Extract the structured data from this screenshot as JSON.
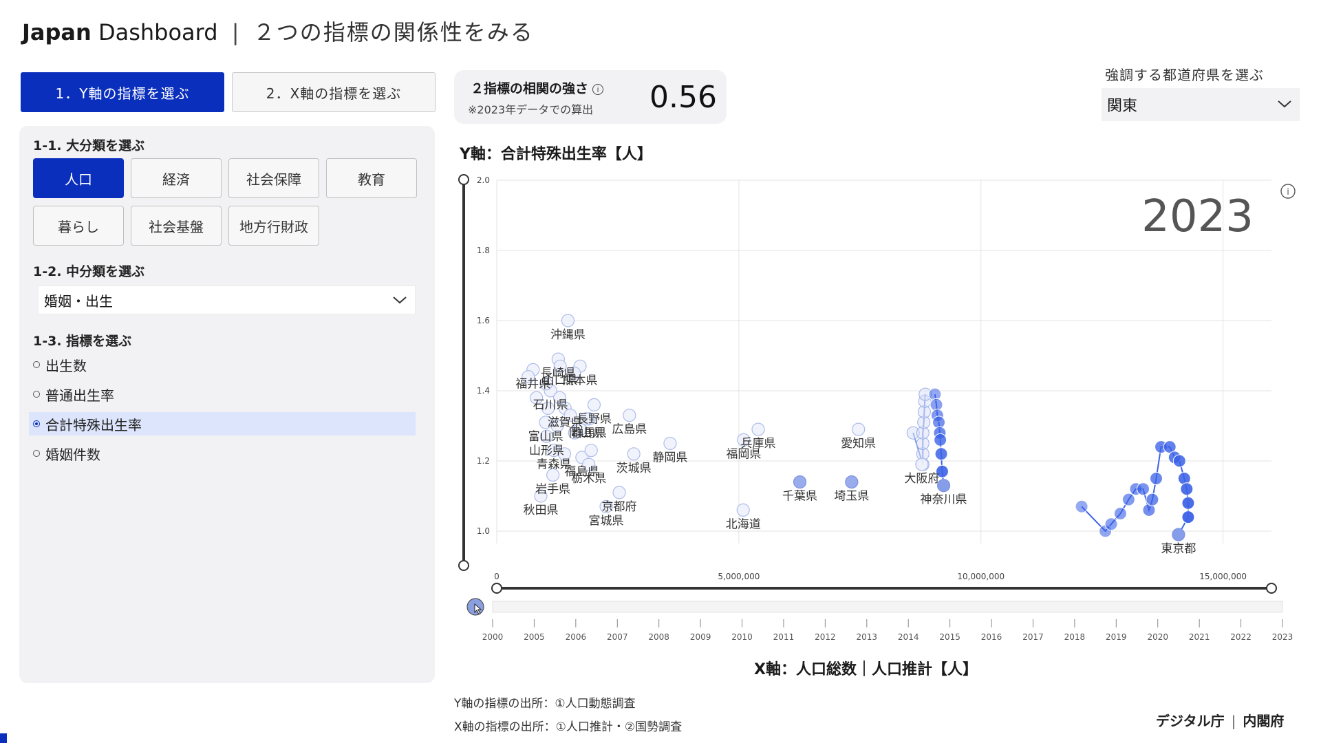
{
  "header": {
    "brand": "Japan",
    "brand_rest": "Dashboard",
    "separator": "|",
    "subtitle": "２つの指標の関係性をみる"
  },
  "steps": [
    {
      "label": "1．Y軸の指標を選ぶ",
      "active": true
    },
    {
      "label": "2．X軸の指標を選ぶ",
      "active": false
    }
  ],
  "left_panel": {
    "section1_title": "1-1. 大分類を選ぶ",
    "categories": [
      {
        "label": "人口",
        "active": true
      },
      {
        "label": "経済",
        "active": false
      },
      {
        "label": "社会保障",
        "active": false
      },
      {
        "label": "教育",
        "active": false
      },
      {
        "label": "暮らし",
        "active": false
      },
      {
        "label": "社会基盤",
        "active": false
      },
      {
        "label": "地方行財政",
        "active": false
      }
    ],
    "section2_title": "1-2. 中分類を選ぶ",
    "mid_category_value": "婚姻・出生",
    "section3_title": "1-3. 指標を選ぶ",
    "indicators": [
      {
        "label": "出生数",
        "selected": false
      },
      {
        "label": "普通出生率",
        "selected": false
      },
      {
        "label": "合計特殊出生率",
        "selected": true
      },
      {
        "label": "婚姻件数",
        "selected": false
      }
    ]
  },
  "correlation": {
    "label": "２指標の相関の強さ",
    "note": "※2023年データでの算出",
    "value": "0.56"
  },
  "prefecture_selector": {
    "label": "強調する都道府県を選ぶ",
    "value": "関東"
  },
  "colors": {
    "accent": "#0b2fbd",
    "highlight": "#3d63e6",
    "faded": "#b3c1ee"
  },
  "chart_data": {
    "type": "scatter",
    "year_label": "2023",
    "ylabel": "Y軸：合計特殊出生率【人】",
    "xlabel": "X軸：人口総数｜人口推計【人】",
    "ylim": [
      1.0,
      2.0
    ],
    "xlim": [
      0,
      16000000
    ],
    "y_ticks": [
      "1.0",
      "1.2",
      "1.4",
      "1.6",
      "1.8",
      "2.0"
    ],
    "x_ticks": [
      {
        "v": 0,
        "label": "0"
      },
      {
        "v": 5000000,
        "label": "5,000,000"
      },
      {
        "v": 10000000,
        "label": "10,000,000"
      },
      {
        "v": 15000000,
        "label": "15,000,000"
      }
    ],
    "timeline_years": [
      "2000",
      "2005",
      "2006",
      "2007",
      "2008",
      "2009",
      "2010",
      "2011",
      "2012",
      "2013",
      "2014",
      "2015",
      "2016",
      "2017",
      "2018",
      "2019",
      "2020",
      "2021",
      "2022",
      "2023"
    ],
    "points": [
      {
        "name": "沖縄県",
        "x": 1470000,
        "y": 1.6,
        "label": true
      },
      {
        "name": "福井県",
        "x": 750000,
        "y": 1.46,
        "label": true
      },
      {
        "name": "長崎県",
        "x": 1270000,
        "y": 1.49,
        "label": true
      },
      {
        "name": "山口県",
        "x": 1310000,
        "y": 1.47,
        "label": true
      },
      {
        "name": "熊本県",
        "x": 1720000,
        "y": 1.47,
        "label": true
      },
      {
        "name": "石川県",
        "x": 1110000,
        "y": 1.4,
        "label": true
      },
      {
        "name": "長野県",
        "x": 2010000,
        "y": 1.36,
        "label": true
      },
      {
        "name": "滋賀県",
        "x": 1410000,
        "y": 1.35,
        "label": true
      },
      {
        "name": "広島県",
        "x": 2740000,
        "y": 1.33,
        "label": true
      },
      {
        "name": "富山県",
        "x": 1010000,
        "y": 1.31,
        "label": true
      },
      {
        "name": "群馬県",
        "x": 1910000,
        "y": 1.32,
        "label": true
      },
      {
        "name": "山形県",
        "x": 1030000,
        "y": 1.27,
        "label": true
      },
      {
        "name": "岡山県",
        "x": 1850000,
        "y": 1.32,
        "label": true
      },
      {
        "name": "茨城県",
        "x": 2830000,
        "y": 1.22,
        "label": true
      },
      {
        "name": "福島県",
        "x": 1760000,
        "y": 1.21,
        "label": true
      },
      {
        "name": "青森県",
        "x": 1180000,
        "y": 1.23,
        "label": true
      },
      {
        "name": "栃木県",
        "x": 1900000,
        "y": 1.19,
        "label": true
      },
      {
        "name": "静岡県",
        "x": 3580000,
        "y": 1.25,
        "label": true
      },
      {
        "name": "岩手県",
        "x": 1160000,
        "y": 1.16,
        "label": true
      },
      {
        "name": "京都府",
        "x": 2530000,
        "y": 1.11,
        "label": true
      },
      {
        "name": "秋田県",
        "x": 910000,
        "y": 1.1,
        "label": true
      },
      {
        "name": "宮城県",
        "x": 2260000,
        "y": 1.07,
        "label": true
      },
      {
        "name": "福岡県",
        "x": 5100000,
        "y": 1.26,
        "label": true
      },
      {
        "name": "兵庫県",
        "x": 5400000,
        "y": 1.29,
        "label": true
      },
      {
        "name": "愛知県",
        "x": 7470000,
        "y": 1.29,
        "label": true
      },
      {
        "name": "北海道",
        "x": 5090000,
        "y": 1.06,
        "label": true
      },
      {
        "name": "千葉県",
        "x": 6260000,
        "y": 1.14,
        "label": true,
        "highlight": true
      },
      {
        "name": "埼玉県",
        "x": 7330000,
        "y": 1.14,
        "label": true,
        "highlight": true
      },
      {
        "name": "大阪府",
        "x": 8780000,
        "y": 1.19,
        "label": true
      },
      {
        "name": "神奈川県",
        "x": 9230000,
        "y": 1.13,
        "label": true,
        "highlight": true
      },
      {
        "name": "東京都",
        "x": 14080000,
        "y": 0.99,
        "label": true,
        "highlight": true
      },
      {
        "name": "",
        "x": 650000,
        "y": 1.44
      },
      {
        "name": "",
        "x": 820000,
        "y": 1.38
      },
      {
        "name": "",
        "x": 1300000,
        "y": 1.38
      },
      {
        "name": "",
        "x": 1020000,
        "y": 1.42
      },
      {
        "name": "",
        "x": 1520000,
        "y": 1.33
      },
      {
        "name": "",
        "x": 1600000,
        "y": 1.45
      },
      {
        "name": "",
        "x": 1250000,
        "y": 1.3
      },
      {
        "name": "",
        "x": 1400000,
        "y": 1.22
      },
      {
        "name": "",
        "x": 1610000,
        "y": 1.28
      },
      {
        "name": "",
        "x": 1720000,
        "y": 1.29
      },
      {
        "name": "",
        "x": 1060000,
        "y": 1.35
      },
      {
        "name": "",
        "x": 1950000,
        "y": 1.23
      }
    ],
    "trajectories": [
      {
        "name": "大阪府",
        "points": [
          [
            8600000,
            1.28
          ],
          [
            8800000,
            1.19
          ],
          [
            8800000,
            1.22
          ],
          [
            8800000,
            1.25
          ],
          [
            8800000,
            1.28
          ],
          [
            8820000,
            1.31
          ],
          [
            8830000,
            1.34
          ],
          [
            8840000,
            1.37
          ],
          [
            8850000,
            1.39
          ]
        ]
      },
      {
        "name": "神奈川県",
        "points": [
          [
            9050000,
            1.39
          ],
          [
            9080000,
            1.36
          ],
          [
            9100000,
            1.33
          ],
          [
            9130000,
            1.31
          ],
          [
            9150000,
            1.28
          ],
          [
            9160000,
            1.26
          ],
          [
            9180000,
            1.22
          ],
          [
            9200000,
            1.17
          ],
          [
            9230000,
            1.13
          ]
        ],
        "highlight": true
      },
      {
        "name": "東京都",
        "points": [
          [
            12080000,
            1.07
          ],
          [
            12570000,
            1.0
          ],
          [
            12690000,
            1.02
          ],
          [
            12880000,
            1.05
          ],
          [
            13050000,
            1.09
          ],
          [
            13200000,
            1.12
          ],
          [
            13350000,
            1.12
          ],
          [
            13470000,
            1.06
          ],
          [
            13540000,
            1.09
          ],
          [
            13620000,
            1.15
          ],
          [
            13720000,
            1.24
          ],
          [
            13900000,
            1.24
          ],
          [
            14000000,
            1.21
          ],
          [
            14100000,
            1.2
          ],
          [
            14200000,
            1.15
          ],
          [
            14250000,
            1.12
          ],
          [
            14280000,
            1.08
          ],
          [
            14280000,
            1.04
          ],
          [
            14080000,
            0.99
          ]
        ],
        "highlight": true
      }
    ]
  },
  "sources": {
    "y": "Y軸の指標の出所：①人口動態調査",
    "x": "X軸の指標の出所：①人口推計・②国勢調査"
  },
  "footer": {
    "org1": "デジタル庁",
    "org2": "内閣府"
  }
}
